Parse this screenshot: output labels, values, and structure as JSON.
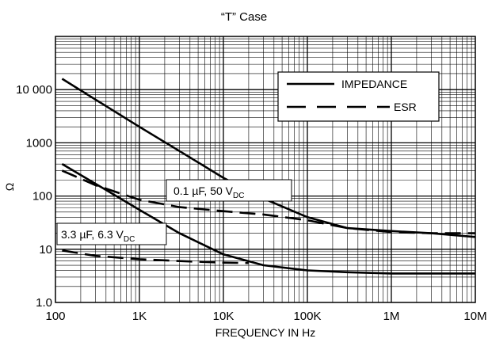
{
  "chart_data": {
    "type": "line",
    "title": "“T” Case",
    "xlabel": "FREQUENCY IN Hz",
    "ylabel": "Ω",
    "x_scale": "log",
    "y_scale": "log",
    "xlim": [
      100,
      10000000
    ],
    "ylim": [
      1,
      100000
    ],
    "grid": true,
    "x_tick_labels": [
      {
        "value": 100,
        "label": "100"
      },
      {
        "value": 1000,
        "label": "1K"
      },
      {
        "value": 10000,
        "label": "10K"
      },
      {
        "value": 100000,
        "label": "100K"
      },
      {
        "value": 1000000,
        "label": "1M"
      },
      {
        "value": 10000000,
        "label": "10M"
      }
    ],
    "y_tick_labels": [
      {
        "value": 1,
        "label": "1.0"
      },
      {
        "value": 10,
        "label": "10"
      },
      {
        "value": 100,
        "label": "100"
      },
      {
        "value": 1000,
        "label": "1000"
      },
      {
        "value": 10000,
        "label": "10 000"
      }
    ],
    "legend": {
      "position": "top-right",
      "entries": [
        {
          "label": "IMPEDANCE",
          "style": "solid"
        },
        {
          "label": "ESR",
          "style": "dashed"
        }
      ]
    },
    "annotations": [
      {
        "id": "a01",
        "text": "0.1 µF, 50 V",
        "sub": "DC"
      },
      {
        "id": "a33",
        "text": "3.3 µF, 6.3 V",
        "sub": "DC"
      }
    ],
    "series": [
      {
        "group": "0.1 µF, 50 V_DC",
        "kind": "IMPEDANCE",
        "style": "solid",
        "x": [
          120,
          300,
          1000,
          3000,
          10000,
          30000,
          100000,
          300000,
          1000000,
          3000000,
          10000000
        ],
        "y": [
          16000,
          6500,
          2000,
          700,
          220,
          90,
          40,
          25,
          22,
          20,
          17
        ]
      },
      {
        "group": "0.1 µF, 50 V_DC",
        "kind": "ESR",
        "style": "dashed",
        "x": [
          120,
          300,
          1000,
          3000,
          10000,
          30000,
          100000,
          300000,
          1000000,
          3000000,
          10000000
        ],
        "y": [
          300,
          160,
          85,
          62,
          52,
          45,
          35,
          25,
          21,
          20,
          20
        ]
      },
      {
        "group": "3.3 µF, 6.3 V_DC",
        "kind": "IMPEDANCE",
        "style": "solid",
        "x": [
          120,
          300,
          1000,
          3000,
          10000,
          30000,
          100000,
          300000,
          1000000,
          3000000,
          10000000
        ],
        "y": [
          400,
          170,
          55,
          20,
          8,
          5,
          4,
          3.7,
          3.5,
          3.5,
          3.5
        ]
      },
      {
        "group": "3.3 µF, 6.3 V_DC",
        "kind": "ESR",
        "style": "dashed",
        "x": [
          120,
          300,
          1000,
          3000,
          10000,
          20000
        ],
        "y": [
          9.5,
          7.5,
          6.5,
          6,
          5.6,
          5.5
        ]
      }
    ]
  }
}
